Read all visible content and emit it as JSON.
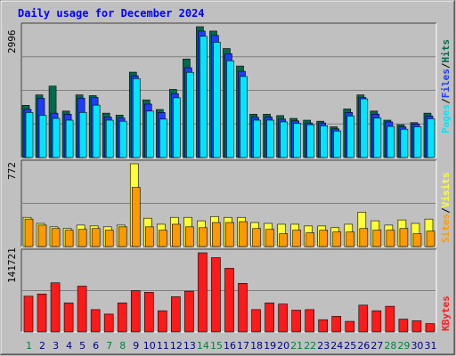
{
  "title": "Daily usage for December 2024",
  "colors": {
    "background": "#c0c0c0",
    "panel": "#c0c0c0",
    "title_text": "#0000ff",
    "hits": "#006a4e",
    "files": "#1e3cff",
    "pages": "#00e5ff",
    "visits": "#ffff33",
    "sites": "#ff9900",
    "kbytes": "#ff1a1a",
    "weekend_label": "#008040",
    "weekday_label": "#000080"
  },
  "chart_data": [
    {
      "type": "bar",
      "name": "hits-files-pages",
      "x": [
        1,
        2,
        3,
        4,
        5,
        6,
        7,
        8,
        9,
        10,
        11,
        12,
        13,
        14,
        15,
        16,
        17,
        18,
        19,
        20,
        21,
        22,
        23,
        24,
        25,
        26,
        27,
        28,
        29,
        30,
        31
      ],
      "ymax_label": "2996",
      "ylim": [
        0,
        2996
      ],
      "legend": [
        "Pages",
        "Files",
        "Hits"
      ],
      "series": [
        {
          "name": "Hits",
          "values": [
            1195,
            1434,
            1636,
            1064,
            1434,
            1418,
            1016,
            972,
            1956,
            1320,
            1100,
            1560,
            2256,
            2996,
            2896,
            2496,
            2096,
            992,
            992,
            960,
            896,
            856,
            832,
            704,
            1112,
            1434,
            1064,
            856,
            752,
            800,
            1016
          ]
        },
        {
          "name": "Files",
          "values": [
            1104,
            1356,
            1016,
            992,
            1360,
            1376,
            928,
            904,
            1872,
            1224,
            1032,
            1464,
            2056,
            2896,
            2796,
            2376,
            1976,
            920,
            928,
            880,
            840,
            792,
            792,
            656,
            1032,
            1376,
            992,
            816,
            704,
            768,
            952
          ]
        },
        {
          "name": "Pages",
          "values": [
            1032,
            968,
            896,
            856,
            1032,
            1200,
            856,
            832,
            1808,
            1064,
            880,
            1368,
            1952,
            2776,
            2640,
            2216,
            1856,
            856,
            856,
            816,
            784,
            752,
            728,
            608,
            952,
            1344,
            904,
            712,
            648,
            704,
            888
          ]
        }
      ]
    },
    {
      "type": "bar",
      "name": "visits-sites",
      "x": [
        1,
        2,
        3,
        4,
        5,
        6,
        7,
        8,
        9,
        10,
        11,
        12,
        13,
        14,
        15,
        16,
        17,
        18,
        19,
        20,
        21,
        22,
        23,
        24,
        25,
        26,
        27,
        28,
        29,
        30,
        31
      ],
      "ymax_label": "772",
      "ylim": [
        0,
        772
      ],
      "legend": [
        "Sites",
        "Visits"
      ],
      "series": [
        {
          "name": "Visits",
          "values": [
            272,
            216,
            184,
            168,
            200,
            192,
            184,
            200,
            772,
            264,
            208,
            272,
            272,
            240,
            280,
            272,
            272,
            224,
            216,
            208,
            208,
            192,
            192,
            176,
            208,
            320,
            240,
            200,
            248,
            216,
            256
          ]
        },
        {
          "name": "Sites",
          "values": [
            256,
            200,
            168,
            152,
            160,
            168,
            152,
            184,
            552,
            184,
            152,
            208,
            184,
            176,
            224,
            224,
            232,
            168,
            160,
            120,
            152,
            128,
            152,
            136,
            136,
            168,
            152,
            152,
            168,
            120,
            144
          ]
        }
      ]
    },
    {
      "type": "bar",
      "name": "kbytes",
      "x": [
        1,
        2,
        3,
        4,
        5,
        6,
        7,
        8,
        9,
        10,
        11,
        12,
        13,
        14,
        15,
        16,
        17,
        18,
        19,
        20,
        21,
        22,
        23,
        24,
        25,
        26,
        27,
        28,
        29,
        30,
        31
      ],
      "ymax_label": "141721",
      "ylim": [
        0,
        141721
      ],
      "legend": [
        "KBytes"
      ],
      "series": [
        {
          "name": "KBytes",
          "values": [
            64000,
            68000,
            88000,
            52000,
            82000,
            40000,
            32000,
            52000,
            74000,
            71000,
            38000,
            63000,
            73000,
            141721,
            133000,
            114000,
            87000,
            40000,
            52000,
            50000,
            39000,
            40000,
            22000,
            28000,
            19000,
            48000,
            38000,
            46000,
            23000,
            20000,
            15000
          ]
        }
      ]
    }
  ],
  "x_axis": {
    "days": [
      "1",
      "2",
      "3",
      "4",
      "5",
      "6",
      "7",
      "8",
      "9",
      "10",
      "11",
      "12",
      "13",
      "14",
      "15",
      "16",
      "17",
      "18",
      "19",
      "20",
      "21",
      "22",
      "23",
      "24",
      "25",
      "26",
      "27",
      "28",
      "29",
      "30",
      "31"
    ],
    "weekend_days": [
      "1",
      "7",
      "8",
      "14",
      "15",
      "21",
      "22",
      "28",
      "29"
    ]
  }
}
